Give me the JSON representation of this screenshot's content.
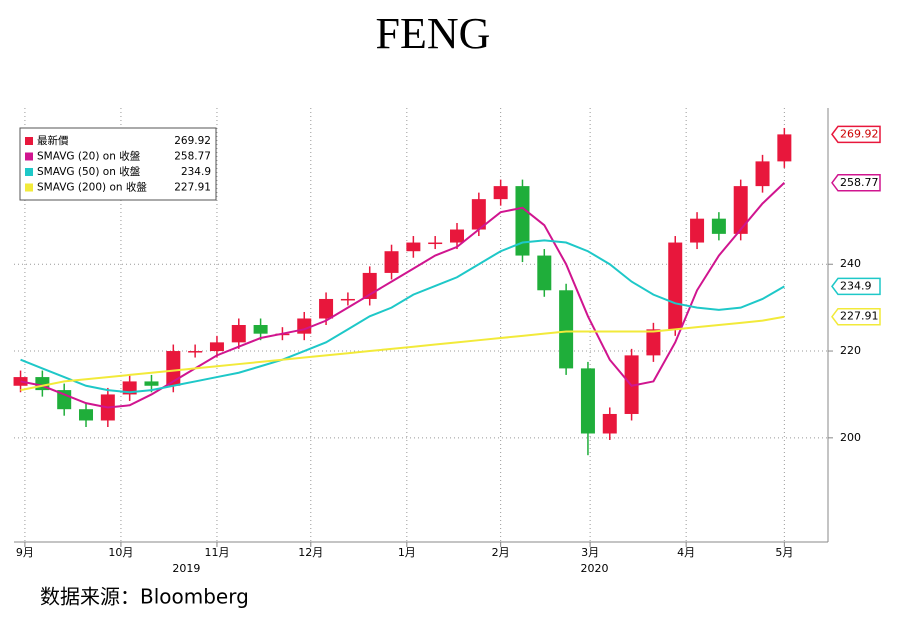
{
  "chart_data": {
    "type": "candlestick",
    "title": "FENG",
    "source": "数据来源：Bloomberg",
    "price_name": "最新價",
    "price_color": "#e8173c",
    "up_color": "#e8173c",
    "down_color": "#1fae3a",
    "x": [
      0.3,
      1.3,
      2.3,
      3.3,
      4.3,
      5.3,
      6.3,
      7.3,
      8.3,
      9.3,
      10.3,
      11.3,
      12.3,
      13.3,
      14.3,
      15.3,
      16.3,
      17.3,
      18.3,
      19.3,
      20.3,
      21.3,
      22.3,
      23.3,
      24.3,
      25.3,
      26.3,
      27.3,
      28.3,
      29.3,
      30.3,
      31.3,
      32.3,
      33.3,
      34.3,
      35.3
    ],
    "open": [
      212,
      214,
      211,
      206.6,
      204,
      210,
      213,
      212,
      220,
      220,
      222,
      226,
      224,
      224,
      227.5,
      232,
      232,
      238,
      243,
      245,
      245,
      248,
      255,
      258,
      242,
      234,
      216,
      201,
      205.5,
      219,
      225,
      245,
      250.5,
      247,
      258,
      263.7
    ],
    "high": [
      215.5,
      215.5,
      212.5,
      208.1,
      211.5,
      214.5,
      214.5,
      221.5,
      221.5,
      223.5,
      227.5,
      227.5,
      225.5,
      229,
      233.5,
      233.5,
      239.5,
      244.5,
      246.5,
      246.5,
      249.5,
      256.5,
      259.5,
      259.5,
      243.5,
      235.5,
      217.5,
      207,
      220.5,
      226.5,
      246.5,
      252,
      252,
      259.5,
      265.2,
      271.4
    ],
    "low": [
      210.5,
      209.5,
      205.1,
      202.5,
      202.5,
      208.5,
      210.5,
      210.5,
      218.5,
      218.5,
      220.5,
      222.5,
      222.5,
      222.5,
      226,
      230.5,
      230.5,
      236.5,
      241.5,
      243.5,
      243.5,
      246.5,
      253.5,
      240.5,
      232.5,
      214.5,
      196,
      199.5,
      204,
      217.5,
      223.5,
      243.5,
      245.5,
      245.5,
      256.5,
      262.2
    ],
    "close": [
      214,
      211,
      206.6,
      204,
      210,
      213,
      212,
      220,
      220,
      222,
      226,
      224,
      224,
      227.5,
      232,
      232,
      238,
      243,
      245,
      245,
      248,
      255,
      258,
      242,
      234,
      216,
      201,
      205.5,
      219,
      225,
      245,
      250.5,
      247,
      258,
      263.7,
      269.92
    ],
    "series": [
      {
        "name": "SMAVG (20)  on 收盤",
        "color": "#d0158f",
        "values": [
          213,
          212,
          210,
          208,
          207,
          207.5,
          210,
          213,
          216,
          219,
          221,
          223,
          224,
          225,
          227,
          230,
          233,
          236,
          239,
          242,
          244,
          248,
          252,
          253,
          249,
          240,
          228,
          218,
          212,
          213,
          222,
          234,
          242,
          248,
          254,
          258.77
        ]
      },
      {
        "name": "SMAVG (50)  on 收盤",
        "color": "#1ec8c8",
        "values": [
          218,
          216,
          214,
          212,
          211,
          210.5,
          211,
          212,
          213,
          214,
          215,
          216.5,
          218,
          220,
          222,
          225,
          228,
          230,
          233,
          235,
          237,
          240,
          243,
          245,
          245.5,
          245,
          243,
          240,
          236,
          233,
          231,
          230,
          229.5,
          230,
          232,
          234.9
        ]
      },
      {
        "name": "SMAVG (200)  on 收盤",
        "color": "#f2ea3a",
        "values": [
          211,
          212,
          213,
          213.5,
          214,
          214.5,
          215,
          215.5,
          216,
          216.5,
          217,
          217.5,
          218,
          218.5,
          219,
          219.5,
          220,
          220.5,
          221,
          221.5,
          222,
          222.5,
          223,
          223.5,
          224,
          224.5,
          224.5,
          224.5,
          224.5,
          224.5,
          225,
          225.5,
          226,
          226.5,
          227,
          227.91
        ]
      }
    ],
    "xlim": [
      0,
      37.3
    ],
    "xticks": [
      {
        "value": 0.5,
        "label": "9月"
      },
      {
        "value": 4.9,
        "label": "10月"
      },
      {
        "value": 9.3,
        "label": "11月"
      },
      {
        "value": 13.6,
        "label": "12月"
      },
      {
        "value": 18.0,
        "label": "1月"
      },
      {
        "value": 22.3,
        "label": "2月"
      },
      {
        "value": 26.4,
        "label": "3月"
      },
      {
        "value": 30.8,
        "label": "4月"
      },
      {
        "value": 35.3,
        "label": "5月"
      }
    ],
    "year_labels": [
      {
        "value": 7.9,
        "label": "2019"
      },
      {
        "value": 26.6,
        "label": "2020"
      }
    ],
    "ylim": [
      176,
      276
    ],
    "yticks": [
      200,
      220,
      240
    ],
    "grid": true
  }
}
